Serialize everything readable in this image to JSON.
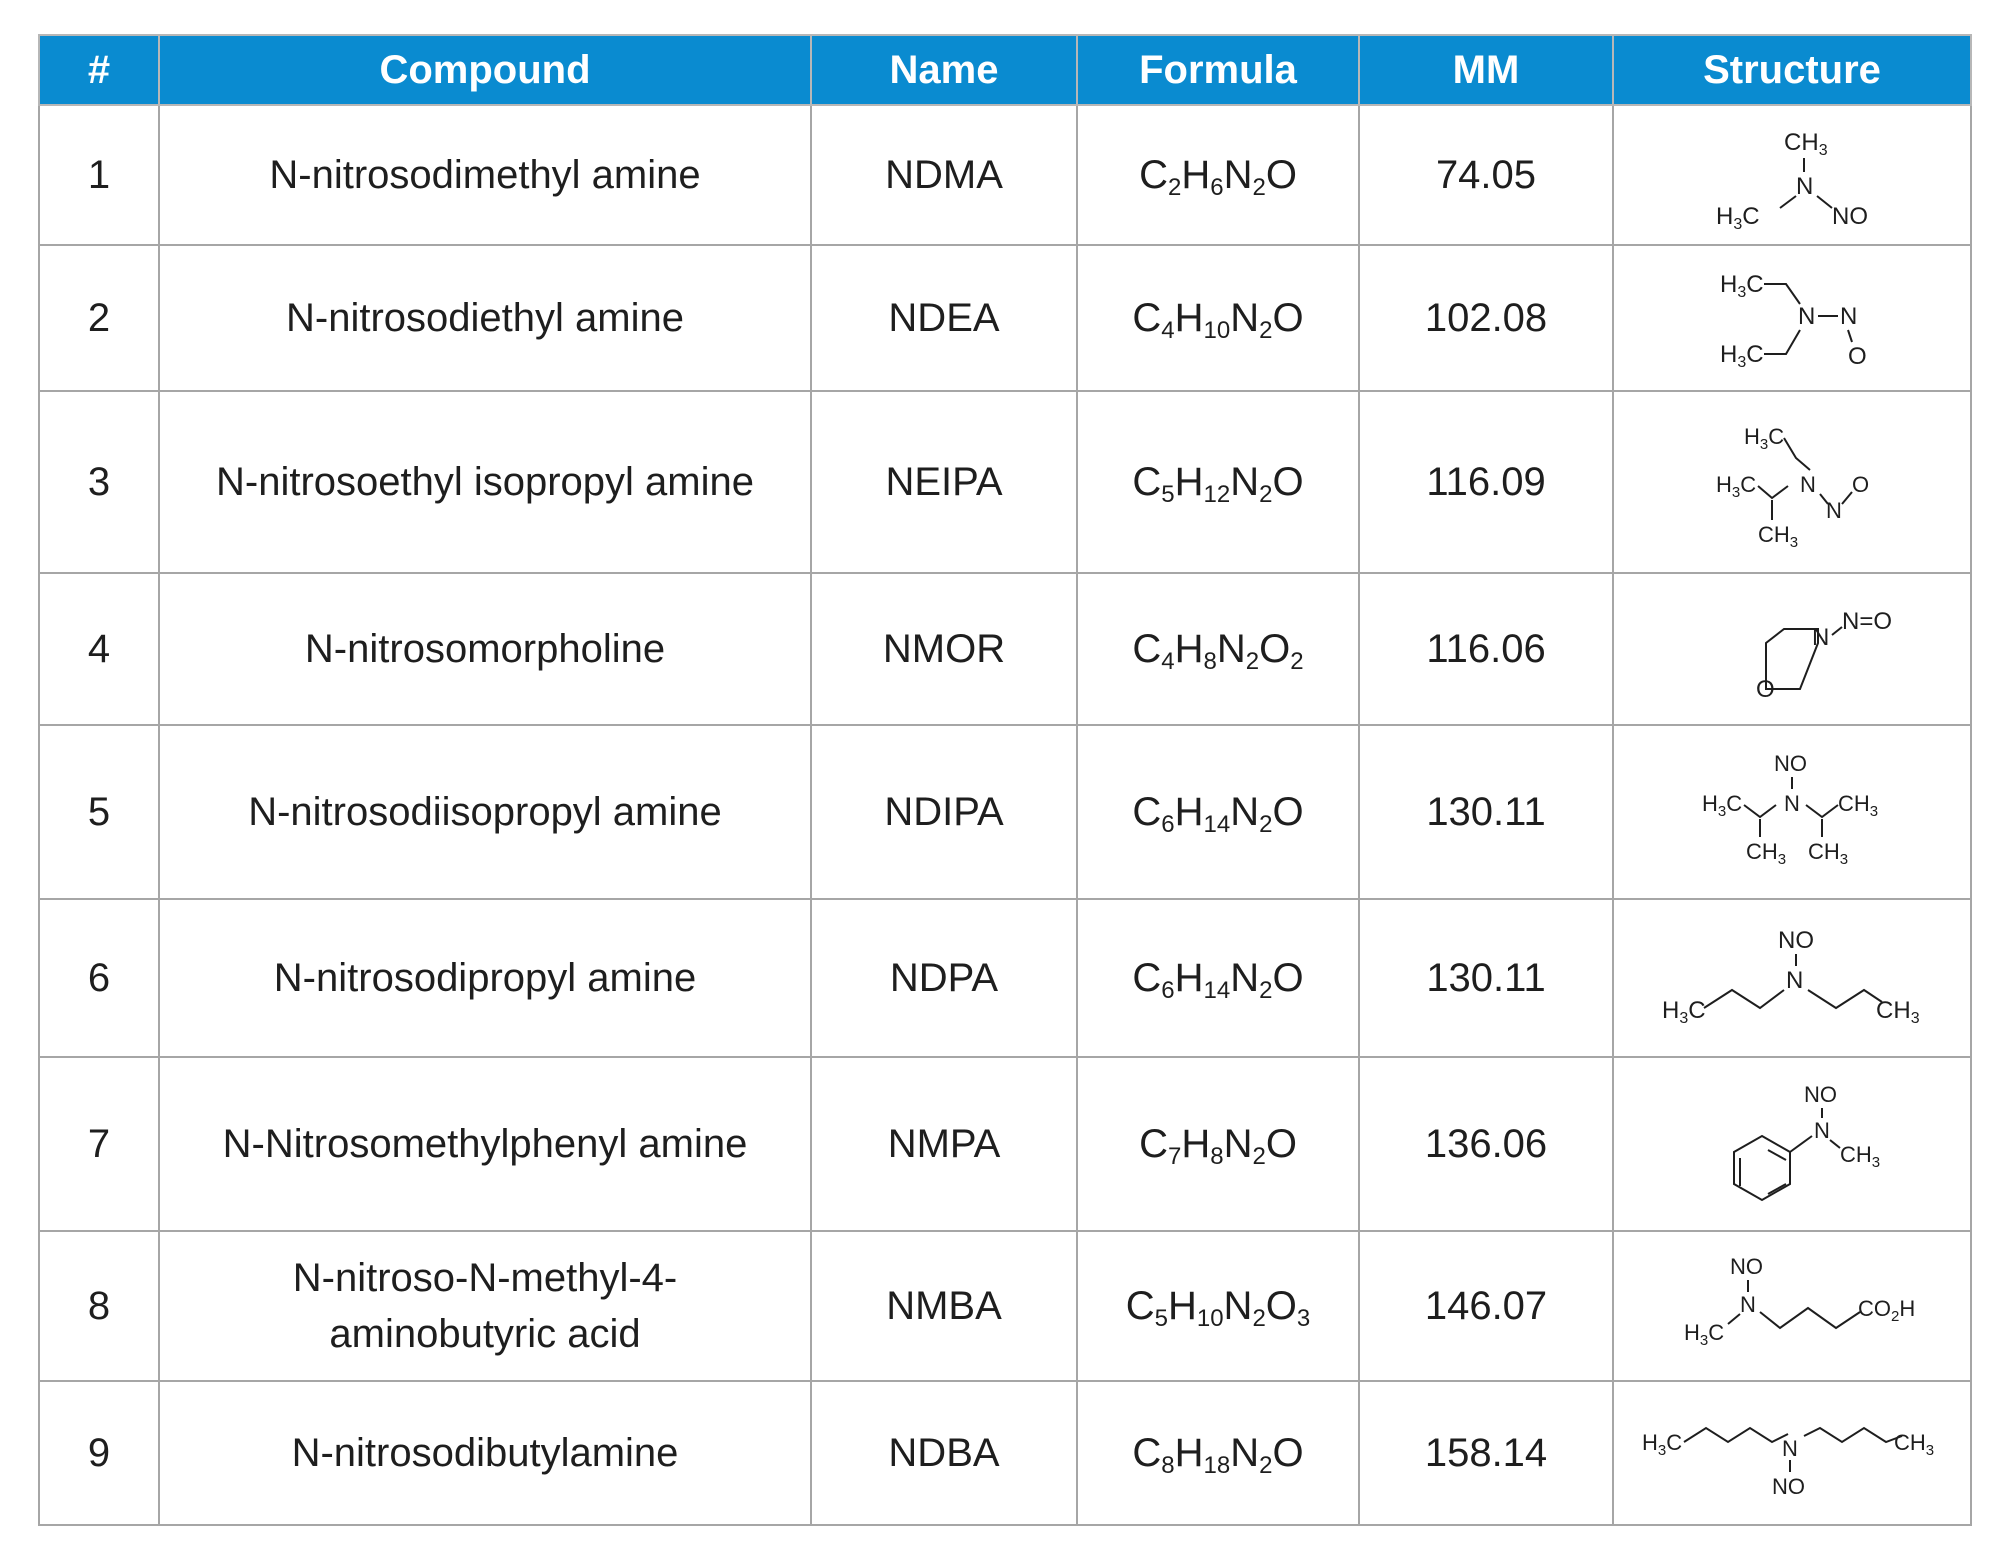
{
  "colors": {
    "header_bg": "#0a8bd0",
    "header_text": "#ffffff",
    "border": "#a6a6a6"
  },
  "table": {
    "headers": [
      "#",
      "Compound",
      "Name",
      "Formula",
      "MM",
      "Structure"
    ],
    "rows": [
      {
        "num": "1",
        "compound": "N-nitrosodimethyl amine",
        "name": "NDMA",
        "formula": [
          [
            "C",
            "2"
          ],
          [
            "H",
            "6"
          ],
          [
            "N",
            "2"
          ],
          [
            "O",
            ""
          ]
        ],
        "formula_text": "C2H6N2O",
        "mm": "74.05",
        "structure_labels": [
          "CH3",
          "N",
          "H3C",
          "NO"
        ]
      },
      {
        "num": "2",
        "compound": "N-nitrosodiethyl amine",
        "name": "NDEA",
        "formula": [
          [
            "C",
            "4"
          ],
          [
            "H",
            "10"
          ],
          [
            "N",
            "2"
          ],
          [
            "O",
            ""
          ]
        ],
        "formula_text": "C4H10N2O",
        "mm": "102.08",
        "structure_labels": [
          "H3C",
          "N",
          "N",
          "H3C",
          "O"
        ]
      },
      {
        "num": "3",
        "compound": "N-nitrosoethyl isopropyl amine",
        "name": "NEIPA",
        "formula": [
          [
            "C",
            "5"
          ],
          [
            "H",
            "12"
          ],
          [
            "N",
            "2"
          ],
          [
            "O",
            ""
          ]
        ],
        "formula_text": "C5H12N2O",
        "mm": "116.09",
        "structure_labels": [
          "H3C",
          "H3C",
          "N",
          "N",
          "O",
          "CH3"
        ]
      },
      {
        "num": "4",
        "compound": "N-nitrosomorpholine",
        "name": "NMOR",
        "formula": [
          [
            "C",
            "4"
          ],
          [
            "H",
            "8"
          ],
          [
            "N",
            "2"
          ],
          [
            "O",
            "2"
          ]
        ],
        "formula_text": "C4H8N2O2",
        "mm": "116.06",
        "structure_labels": [
          "N=O",
          "N",
          "O"
        ]
      },
      {
        "num": "5",
        "compound": "N-nitrosodiisopropyl amine",
        "name": "NDIPA",
        "formula": [
          [
            "C",
            "6"
          ],
          [
            "H",
            "14"
          ],
          [
            "N",
            "2"
          ],
          [
            "O",
            ""
          ]
        ],
        "formula_text": "C6H14N2O",
        "mm": "130.11",
        "structure_labels": [
          "NO",
          "H3C",
          "N",
          "CH3",
          "CH3",
          "CH3"
        ]
      },
      {
        "num": "6",
        "compound": "N-nitrosodipropyl amine",
        "name": "NDPA",
        "formula": [
          [
            "C",
            "6"
          ],
          [
            "H",
            "14"
          ],
          [
            "N",
            "2"
          ],
          [
            "O",
            ""
          ]
        ],
        "formula_text": "C6H14N2O",
        "mm": "130.11",
        "structure_labels": [
          "NO",
          "N",
          "H3C",
          "CH3"
        ]
      },
      {
        "num": "7",
        "compound": "N-Nitrosomethylphenyl amine",
        "name": "NMPA",
        "formula": [
          [
            "C",
            "7"
          ],
          [
            "H",
            "8"
          ],
          [
            "N",
            "2"
          ],
          [
            "O",
            ""
          ]
        ],
        "formula_text": "C7H8N2O",
        "mm": "136.06",
        "structure_labels": [
          "NO",
          "N",
          "CH3"
        ]
      },
      {
        "num": "8",
        "compound": "N-nitroso-N-methyl-4-aminobutyric acid",
        "compound_lines": [
          "N-nitroso-N-methyl-4-",
          "aminobutyric acid"
        ],
        "name": "NMBA",
        "formula": [
          [
            "C",
            "5"
          ],
          [
            "H",
            "10"
          ],
          [
            "N",
            "2"
          ],
          [
            "O",
            "3"
          ]
        ],
        "formula_text": "C5H10N2O3",
        "mm": "146.07",
        "structure_labels": [
          "NO",
          "N",
          "H3C",
          "CO2H"
        ]
      },
      {
        "num": "9",
        "compound": "N-nitrosodibutylamine",
        "name": "NDBA",
        "formula": [
          [
            "C",
            "8"
          ],
          [
            "H",
            "18"
          ],
          [
            "N",
            "2"
          ],
          [
            "O",
            ""
          ]
        ],
        "formula_text": "C8H18N2O",
        "mm": "158.14",
        "structure_labels": [
          "H3C",
          "N",
          "CH3",
          "NO"
        ]
      }
    ]
  }
}
